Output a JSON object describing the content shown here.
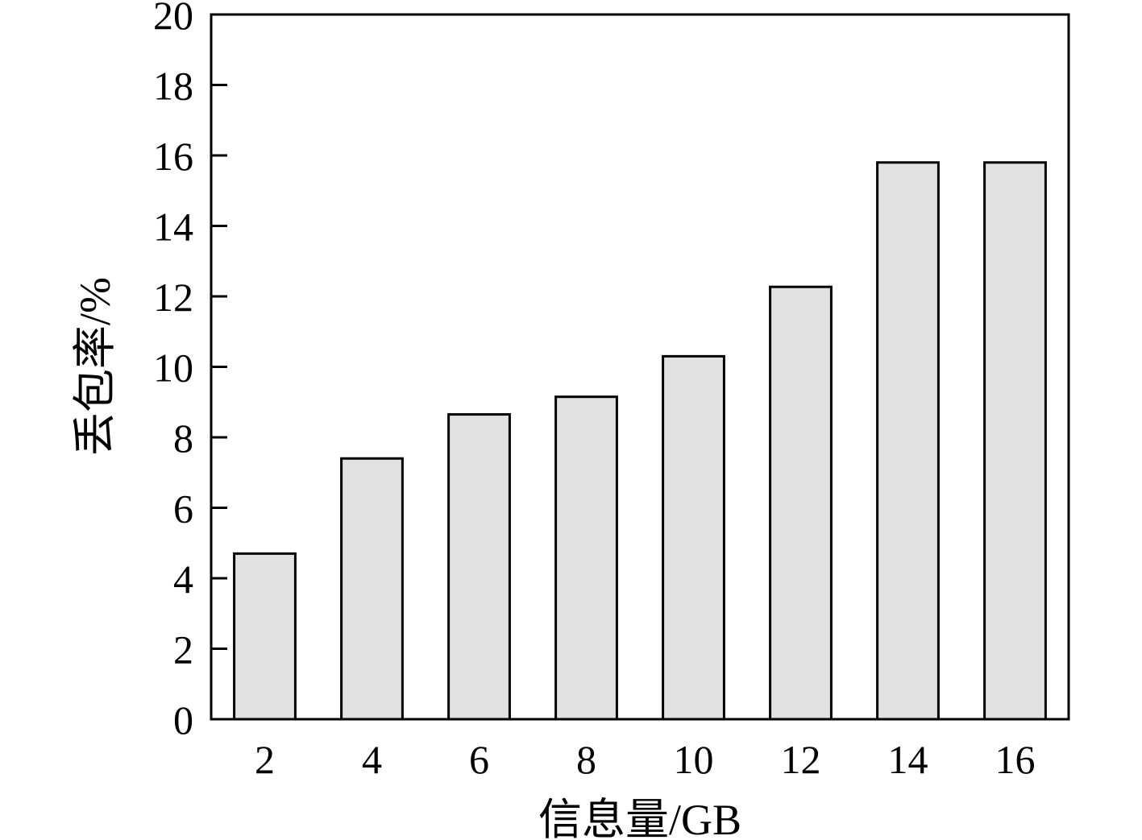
{
  "chart_data": {
    "type": "bar",
    "categories": [
      "2",
      "4",
      "6",
      "8",
      "10",
      "12",
      "14",
      "16"
    ],
    "values": [
      4.7,
      7.4,
      8.65,
      9.15,
      10.3,
      12.27,
      15.8,
      15.8
    ],
    "xlabel": "信息量/GB",
    "ylabel": "丢包率/%",
    "ylim": [
      0,
      20
    ],
    "yticks": [
      "0",
      "2",
      "4",
      "6",
      "8",
      "10",
      "12",
      "14",
      "16",
      "18",
      "20"
    ],
    "bar_color": "#e1e1e1",
    "edge_color": "#000000",
    "grid": false
  }
}
